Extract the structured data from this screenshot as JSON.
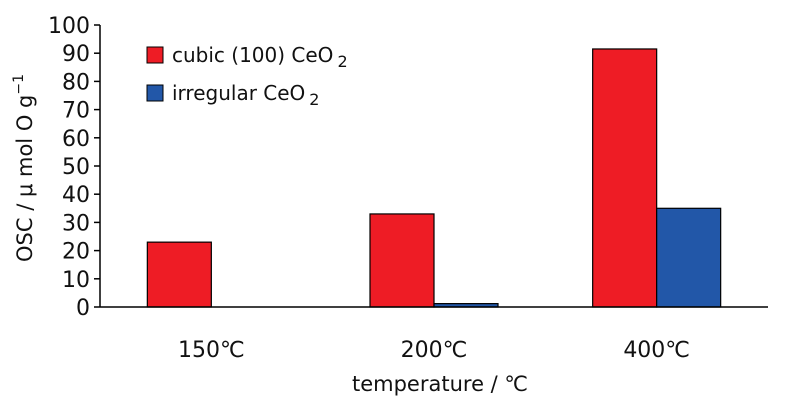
{
  "chart_data": {
    "type": "bar",
    "title": "",
    "categories": [
      "150℃",
      "200℃",
      "400℃"
    ],
    "series": [
      {
        "name": "cubic (100) CeO",
        "name_subscript": "2",
        "color": "#ee1c25",
        "values": [
          23,
          33,
          91.5
        ]
      },
      {
        "name": "irregular CeO",
        "name_subscript": "2",
        "color": "#2257a8",
        "values": [
          0,
          1.2,
          35
        ]
      }
    ],
    "xlabel": "temperature  /  ℃",
    "ylabel": "OSC  /  μ mol O g",
    "ylabel_superscript": "−1",
    "ylim": [
      0,
      100
    ],
    "yticks": [
      0,
      10,
      20,
      30,
      40,
      50,
      60,
      70,
      80,
      90,
      100
    ],
    "grid": false,
    "legend": "top-left"
  }
}
